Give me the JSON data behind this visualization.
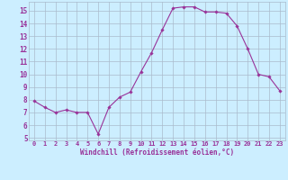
{
  "x": [
    0,
    1,
    2,
    3,
    4,
    5,
    6,
    7,
    8,
    9,
    10,
    11,
    12,
    13,
    14,
    15,
    16,
    17,
    18,
    19,
    20,
    21,
    22,
    23
  ],
  "y": [
    7.9,
    7.4,
    7.0,
    7.2,
    7.0,
    7.0,
    5.3,
    7.4,
    8.2,
    8.6,
    10.2,
    11.7,
    13.5,
    15.2,
    15.3,
    15.3,
    14.9,
    14.9,
    14.8,
    13.8,
    12.0,
    10.0,
    9.8,
    8.7
  ],
  "line_color": "#993399",
  "marker_color": "#993399",
  "bg_color": "#cceeff",
  "grid_color": "#aabbcc",
  "xlabel": "Windchill (Refroidissement éolien,°C)",
  "xlabel_color": "#993399",
  "tick_color": "#993399",
  "ylim": [
    4.8,
    15.7
  ],
  "xlim": [
    -0.5,
    23.5
  ],
  "yticks": [
    5,
    6,
    7,
    8,
    9,
    10,
    11,
    12,
    13,
    14,
    15
  ],
  "xticks": [
    0,
    1,
    2,
    3,
    4,
    5,
    6,
    7,
    8,
    9,
    10,
    11,
    12,
    13,
    14,
    15,
    16,
    17,
    18,
    19,
    20,
    21,
    22,
    23
  ],
  "figsize": [
    3.2,
    2.0
  ],
  "dpi": 100
}
